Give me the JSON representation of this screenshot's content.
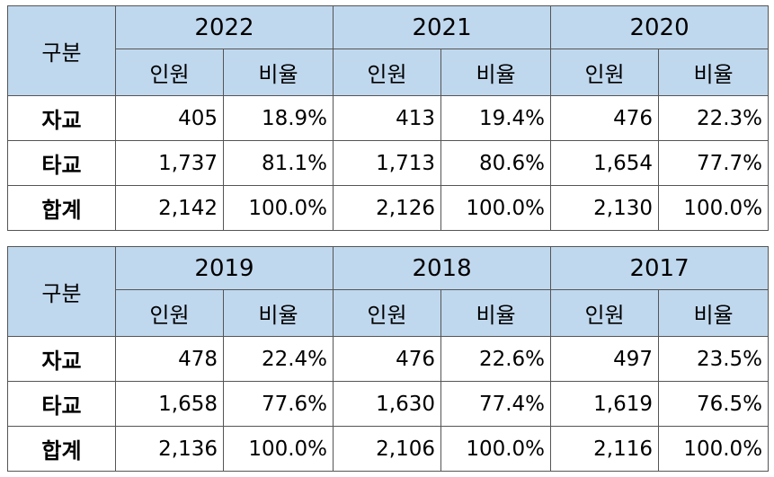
{
  "labels": {
    "gubun": "구분",
    "persons": "인원",
    "ratio": "비율",
    "rows": [
      "자교",
      "타교",
      "합계"
    ]
  },
  "tables": [
    {
      "years": [
        "2022",
        "2021",
        "2020"
      ],
      "rows": [
        [
          [
            "405",
            "18.9%"
          ],
          [
            "413",
            "19.4%"
          ],
          [
            "476",
            "22.3%"
          ]
        ],
        [
          [
            "1,737",
            "81.1%"
          ],
          [
            "1,713",
            "80.6%"
          ],
          [
            "1,654",
            "77.7%"
          ]
        ],
        [
          [
            "2,142",
            "100.0%"
          ],
          [
            "2,126",
            "100.0%"
          ],
          [
            "2,130",
            "100.0%"
          ]
        ]
      ]
    },
    {
      "years": [
        "2019",
        "2018",
        "2017"
      ],
      "rows": [
        [
          [
            "478",
            "22.4%"
          ],
          [
            "476",
            "22.6%"
          ],
          [
            "497",
            "23.5%"
          ]
        ],
        [
          [
            "1,658",
            "77.6%"
          ],
          [
            "1,630",
            "77.4%"
          ],
          [
            "1,619",
            "76.5%"
          ]
        ],
        [
          [
            "2,136",
            "100.0%"
          ],
          [
            "2,106",
            "100.0%"
          ],
          [
            "2,116",
            "100.0%"
          ]
        ]
      ]
    }
  ],
  "colors": {
    "header_bg": "#c0d8ee",
    "border": "#555555"
  }
}
